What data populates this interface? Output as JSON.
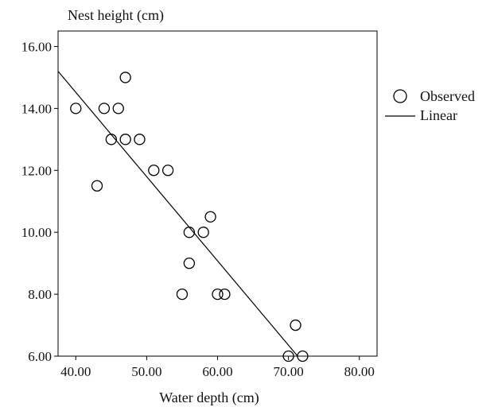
{
  "chart_data": {
    "type": "scatter",
    "title": "",
    "ylabel": "Nest height (cm)",
    "xlabel": "Water depth (cm)",
    "xlim": [
      37.5,
      82.5
    ],
    "ylim": [
      6.0,
      16.5
    ],
    "x_ticks": [
      "40.00",
      "50.00",
      "60.00",
      "70.00",
      "80.00"
    ],
    "y_ticks": [
      "6.00",
      "8.00",
      "10.00",
      "12.00",
      "14.00",
      "16.00"
    ],
    "grid": false,
    "legend": {
      "position": "right",
      "observed_label": "Observed",
      "linear_label": "Linear"
    },
    "points": [
      {
        "x": 40,
        "y": 14.0
      },
      {
        "x": 43,
        "y": 11.5
      },
      {
        "x": 44,
        "y": 14.0
      },
      {
        "x": 45,
        "y": 13.0
      },
      {
        "x": 46,
        "y": 14.0
      },
      {
        "x": 47,
        "y": 15.0
      },
      {
        "x": 47,
        "y": 13.0
      },
      {
        "x": 49,
        "y": 13.0
      },
      {
        "x": 51,
        "y": 12.0
      },
      {
        "x": 53,
        "y": 12.0
      },
      {
        "x": 55,
        "y": 8.0
      },
      {
        "x": 56,
        "y": 10.0
      },
      {
        "x": 56,
        "y": 9.0
      },
      {
        "x": 58,
        "y": 10.0
      },
      {
        "x": 59,
        "y": 10.5
      },
      {
        "x": 60,
        "y": 8.0
      },
      {
        "x": 61,
        "y": 8.0
      },
      {
        "x": 70,
        "y": 6.0
      },
      {
        "x": 71,
        "y": 7.0
      },
      {
        "x": 72,
        "y": 6.0
      }
    ],
    "fit_line": {
      "x": [
        37.5,
        71.3
      ],
      "y": [
        15.2,
        6.0
      ]
    },
    "colors": {
      "marker": "#000000",
      "line": "#000000",
      "background": "#ffffff"
    }
  }
}
